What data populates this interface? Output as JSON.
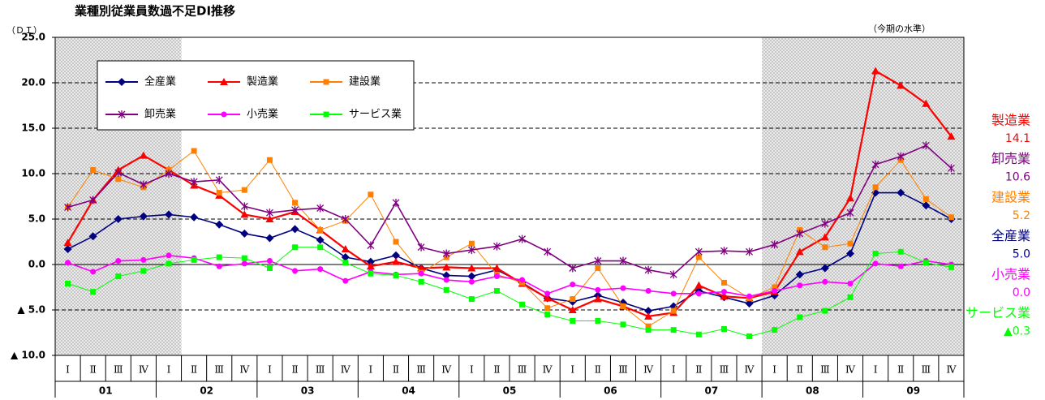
{
  "chart_data": {
    "type": "line",
    "title": "業種別従業員数過不足DI推移",
    "y_axis_label": "（ＤＩ）",
    "end_labels_title": "（今期の水準）",
    "categories": [
      "Ⅰ",
      "Ⅱ",
      "Ⅲ",
      "Ⅳ",
      "Ⅰ",
      "Ⅱ",
      "Ⅲ",
      "Ⅳ",
      "Ⅰ",
      "Ⅱ",
      "Ⅲ",
      "Ⅳ",
      "Ⅰ",
      "Ⅱ",
      "Ⅲ",
      "Ⅳ",
      "Ⅰ",
      "Ⅱ",
      "Ⅲ",
      "Ⅳ",
      "Ⅰ",
      "Ⅱ",
      "Ⅲ",
      "Ⅳ",
      "Ⅰ",
      "Ⅱ",
      "Ⅲ",
      "Ⅳ",
      "Ⅰ",
      "Ⅱ",
      "Ⅲ",
      "Ⅳ",
      "Ⅰ",
      "Ⅱ",
      "Ⅲ",
      "Ⅳ"
    ],
    "years": [
      "01",
      "02",
      "03",
      "04",
      "05",
      "06",
      "07",
      "08",
      "09"
    ],
    "ylim": [
      -10,
      25
    ],
    "yticks": [
      {
        "value": -10,
        "label": "▲ 10.0"
      },
      {
        "value": -5,
        "label": "▲ 5.0"
      },
      {
        "value": 0,
        "label": "0.0"
      },
      {
        "value": 5,
        "label": "5.0"
      },
      {
        "value": 10,
        "label": "10.0"
      },
      {
        "value": 15,
        "label": "15.0"
      },
      {
        "value": 20,
        "label": "20.0"
      },
      {
        "value": 25,
        "label": "25.0"
      }
    ],
    "grid": true,
    "shaded_periods": [
      {
        "from": 0,
        "to": 4
      },
      {
        "from": 28,
        "to": 35
      }
    ],
    "series": [
      {
        "name": "全産業",
        "color": "#000080",
        "marker": "diamond",
        "values": [
          1.7,
          3.1,
          5.0,
          5.3,
          5.5,
          5.2,
          4.4,
          3.4,
          2.9,
          3.9,
          2.7,
          0.8,
          0.3,
          1.0,
          -0.4,
          -1.2,
          -1.3,
          -0.6,
          -2.0,
          -3.7,
          -4.1,
          -3.4,
          -4.2,
          -5.1,
          -4.6,
          -2.9,
          -3.6,
          -4.3,
          -3.4,
          -1.1,
          -0.4,
          1.2,
          7.9,
          7.9,
          6.5,
          5.0
        ],
        "value_labels": [
          null,
          null,
          null,
          null,
          null,
          null,
          null,
          null,
          null,
          null,
          null,
          null,
          null,
          null,
          null,
          null,
          null,
          null,
          null,
          null,
          null,
          null,
          null,
          null,
          null,
          null,
          null,
          null,
          null,
          null,
          null,
          null,
          null,
          null,
          null,
          "5.0"
        ]
      },
      {
        "name": "製造業",
        "color": "#ff0000",
        "marker": "triangle",
        "values": [
          2.4,
          7.1,
          10.4,
          12.0,
          10.4,
          8.7,
          7.6,
          5.5,
          5.0,
          5.8,
          3.8,
          1.7,
          -0.2,
          0.3,
          -0.4,
          -0.3,
          -0.4,
          -0.4,
          -2.1,
          -3.7,
          -5.0,
          -3.8,
          -4.6,
          -5.7,
          -5.3,
          -2.3,
          -3.5,
          -3.7,
          -3.0,
          1.4,
          3.0,
          7.3,
          21.3,
          19.7,
          17.7,
          14.1
        ],
        "value_labels": [
          null,
          null,
          null,
          null,
          null,
          null,
          null,
          null,
          null,
          null,
          null,
          null,
          null,
          null,
          null,
          null,
          null,
          null,
          null,
          null,
          null,
          null,
          null,
          null,
          null,
          null,
          null,
          null,
          null,
          null,
          null,
          null,
          null,
          null,
          null,
          "14.1"
        ]
      },
      {
        "name": "建設業",
        "color": "#ff8000",
        "marker": "square",
        "values": [
          6.3,
          10.4,
          9.4,
          8.5,
          10.4,
          12.5,
          7.9,
          8.2,
          11.5,
          6.8,
          3.8,
          4.8,
          7.7,
          2.5,
          -0.9,
          0.8,
          2.3,
          -1.1,
          -2.0,
          -4.8,
          -3.8,
          -0.4,
          -4.6,
          -6.8,
          -5.1,
          0.8,
          -2.0,
          -3.7,
          -2.5,
          3.8,
          1.9,
          2.3,
          8.5,
          11.5,
          7.2,
          5.2
        ],
        "value_labels": [
          null,
          null,
          null,
          null,
          null,
          null,
          null,
          null,
          null,
          null,
          null,
          null,
          null,
          null,
          null,
          null,
          null,
          null,
          null,
          null,
          null,
          null,
          null,
          null,
          null,
          null,
          null,
          null,
          null,
          null,
          null,
          null,
          null,
          null,
          null,
          "5.2"
        ]
      },
      {
        "name": "卸売業",
        "color": "#800080",
        "marker": "star",
        "values": [
          6.3,
          7.1,
          10.1,
          8.8,
          10.0,
          9.1,
          9.3,
          6.4,
          5.7,
          6.0,
          6.2,
          5.0,
          2.1,
          6.8,
          1.9,
          1.2,
          1.6,
          2.0,
          2.8,
          1.4,
          -0.4,
          0.4,
          0.4,
          -0.6,
          -1.1,
          1.4,
          1.5,
          1.4,
          2.2,
          3.4,
          4.5,
          5.7,
          11.0,
          11.9,
          13.1,
          10.6
        ],
        "value_labels": [
          null,
          null,
          null,
          null,
          null,
          null,
          null,
          null,
          null,
          null,
          null,
          null,
          null,
          null,
          null,
          null,
          null,
          null,
          null,
          null,
          null,
          null,
          null,
          null,
          null,
          null,
          null,
          null,
          null,
          null,
          null,
          null,
          null,
          null,
          null,
          "10.6"
        ]
      },
      {
        "name": "小売業",
        "color": "#ff00ff",
        "marker": "circle",
        "values": [
          0.2,
          -0.8,
          0.4,
          0.5,
          1.0,
          0.7,
          -0.2,
          0.1,
          0.4,
          -0.7,
          -0.5,
          -1.8,
          -0.8,
          -1.1,
          -1.0,
          -1.7,
          -1.9,
          -1.3,
          -1.7,
          -3.2,
          -2.2,
          -2.8,
          -2.6,
          -2.9,
          -3.2,
          -3.2,
          -3.0,
          -3.5,
          -2.9,
          -2.3,
          -1.9,
          -2.1,
          0.1,
          -0.2,
          0.4,
          0.0
        ],
        "value_labels": [
          null,
          null,
          null,
          null,
          null,
          null,
          null,
          null,
          null,
          null,
          null,
          null,
          null,
          null,
          null,
          null,
          null,
          null,
          null,
          null,
          null,
          null,
          null,
          null,
          null,
          null,
          null,
          null,
          null,
          null,
          null,
          null,
          null,
          null,
          null,
          "0.0"
        ]
      },
      {
        "name": "サービス業",
        "color": "#00ff00",
        "marker": "square",
        "values": [
          -2.1,
          -3.0,
          -1.3,
          -0.7,
          0.1,
          0.5,
          0.8,
          0.7,
          -0.4,
          1.9,
          1.9,
          0.2,
          -1.0,
          -1.2,
          -1.9,
          -2.8,
          -3.8,
          -2.9,
          -4.4,
          -5.5,
          -6.2,
          -6.2,
          -6.6,
          -7.2,
          -7.2,
          -7.7,
          -7.1,
          -7.9,
          -7.2,
          -5.8,
          -5.1,
          -3.6,
          1.2,
          1.4,
          0.2,
          -0.3
        ],
        "value_labels": [
          null,
          null,
          null,
          null,
          null,
          null,
          null,
          null,
          null,
          null,
          null,
          null,
          null,
          null,
          null,
          null,
          null,
          null,
          null,
          null,
          null,
          null,
          null,
          null,
          null,
          null,
          null,
          null,
          null,
          null,
          null,
          null,
          null,
          null,
          null,
          "▲0.3"
        ]
      }
    ]
  }
}
